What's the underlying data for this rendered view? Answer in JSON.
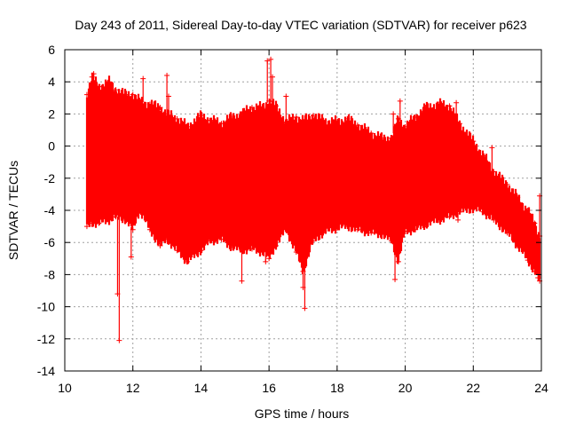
{
  "chart_data": {
    "type": "scatter",
    "title": "Day 243 of 2011, Sidereal Day-to-day VTEC variation (SDTVAR) for receiver p623",
    "xlabel": "GPS time / hours",
    "ylabel": "SDTVAR / TECUs",
    "xlim": [
      10,
      24
    ],
    "ylim": [
      -14,
      6
    ],
    "xticks": [
      10,
      12,
      14,
      16,
      18,
      20,
      22,
      24
    ],
    "yticks": [
      -14,
      -12,
      -10,
      -8,
      -6,
      -4,
      -2,
      0,
      2,
      4,
      6
    ],
    "grid": true,
    "legend": "none",
    "marker": "+",
    "series_color": "#ff0000",
    "envelope": {
      "x": [
        10.65,
        10.8,
        11.0,
        11.3,
        11.5,
        11.8,
        12.0,
        12.2,
        12.5,
        12.8,
        13.0,
        13.3,
        13.6,
        14.0,
        14.3,
        14.6,
        14.9,
        15.2,
        15.5,
        15.8,
        16.0,
        16.2,
        16.5,
        16.8,
        17.0,
        17.3,
        17.6,
        18.0,
        18.3,
        18.6,
        19.0,
        19.3,
        19.6,
        19.8,
        20.0,
        20.3,
        20.6,
        21.0,
        21.3,
        21.6,
        22.0,
        22.3,
        22.6,
        23.0,
        23.3,
        23.6,
        23.8,
        23.95
      ],
      "upper": [
        3.2,
        4.3,
        3.7,
        4.0,
        3.5,
        3.2,
        3.2,
        2.8,
        2.6,
        2.4,
        2.0,
        1.7,
        1.2,
        1.9,
        1.6,
        1.4,
        1.8,
        2.0,
        2.4,
        2.4,
        2.8,
        2.5,
        1.5,
        1.8,
        1.6,
        1.9,
        1.6,
        1.5,
        1.7,
        1.3,
        0.8,
        0.5,
        0.5,
        1.7,
        1.2,
        1.8,
        2.4,
        2.6,
        2.5,
        1.4,
        0.3,
        -0.6,
        -1.6,
        -2.4,
        -3.2,
        -4.0,
        -4.8,
        -5.6
      ],
      "lower": [
        -5.0,
        -4.8,
        -4.8,
        -4.6,
        -4.4,
        -4.6,
        -5.2,
        -4.0,
        -5.2,
        -6.2,
        -5.8,
        -6.5,
        -7.2,
        -6.5,
        -5.9,
        -5.8,
        -6.3,
        -6.5,
        -6.4,
        -6.6,
        -7.0,
        -6.2,
        -5.2,
        -6.6,
        -7.8,
        -5.9,
        -5.4,
        -5.1,
        -5.0,
        -5.2,
        -5.4,
        -5.5,
        -5.9,
        -7.2,
        -5.3,
        -5.2,
        -4.9,
        -4.6,
        -4.4,
        -4.1,
        -3.9,
        -4.1,
        -4.6,
        -5.4,
        -6.2,
        -7.1,
        -7.8,
        -8.4
      ]
    },
    "spikes": [
      {
        "x": 10.85,
        "y": 4.5
      },
      {
        "x": 11.55,
        "y": -9.2
      },
      {
        "x": 11.6,
        "y": -12.1
      },
      {
        "x": 11.95,
        "y": -6.9
      },
      {
        "x": 12.3,
        "y": 4.2
      },
      {
        "x": 13.0,
        "y": 4.4
      },
      {
        "x": 13.05,
        "y": 3.1
      },
      {
        "x": 14.55,
        "y": -5.3
      },
      {
        "x": 15.2,
        "y": -8.4
      },
      {
        "x": 15.95,
        "y": 5.3
      },
      {
        "x": 16.05,
        "y": 5.4
      },
      {
        "x": 15.9,
        "y": -7.2
      },
      {
        "x": 16.1,
        "y": 4.3
      },
      {
        "x": 16.5,
        "y": 3.1
      },
      {
        "x": 17.0,
        "y": -8.8
      },
      {
        "x": 17.05,
        "y": -10.1
      },
      {
        "x": 17.15,
        "y": -6.2
      },
      {
        "x": 19.65,
        "y": 2.0
      },
      {
        "x": 19.7,
        "y": -8.3
      },
      {
        "x": 19.85,
        "y": 2.8
      },
      {
        "x": 20.5,
        "y": 1.7
      },
      {
        "x": 21.5,
        "y": 2.7
      },
      {
        "x": 21.55,
        "y": -4.6
      },
      {
        "x": 22.55,
        "y": -0.1
      },
      {
        "x": 23.95,
        "y": -3.1
      },
      {
        "x": 23.9,
        "y": -8.2
      }
    ]
  }
}
